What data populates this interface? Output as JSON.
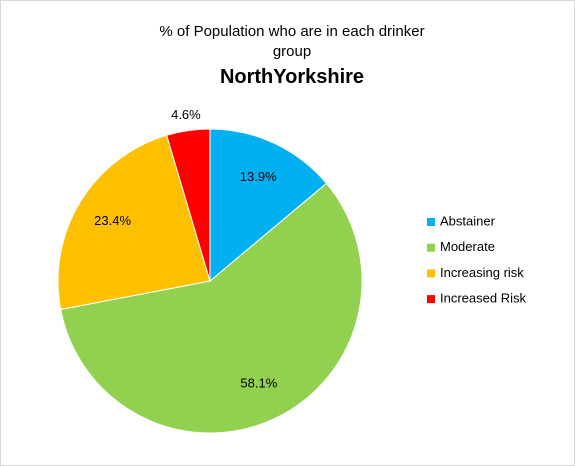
{
  "chart_data": {
    "type": "pie",
    "title": "% of Population who are in each drinker group",
    "subtitle": "NorthYorkshire",
    "categories": [
      "Abstainer",
      "Moderate",
      "Increasing risk",
      "Increased Risk"
    ],
    "values": [
      13.9,
      58.1,
      23.4,
      4.6
    ],
    "value_labels": [
      "13.9%",
      "58.1%",
      "23.4%",
      "4.6%"
    ],
    "colors": [
      "#00b0f0",
      "#92d050",
      "#ffc000",
      "#ff0000"
    ],
    "legend": "right"
  }
}
